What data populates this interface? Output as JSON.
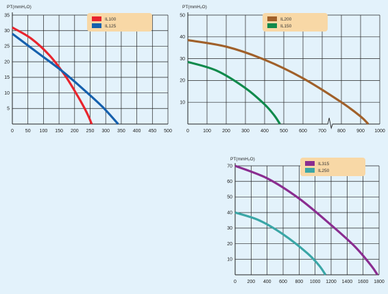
{
  "colors": {
    "background": "#e3f2fb",
    "legend_bg": "#f8d8a6",
    "grid": "#222222"
  },
  "chart_data": [
    {
      "type": "line",
      "ylabel": "PT(mmH₂O)",
      "xlim": [
        0,
        500
      ],
      "ylim": [
        0,
        35
      ],
      "x_ticks": [
        0,
        50,
        100,
        150,
        200,
        250,
        300,
        350,
        400,
        450,
        500
      ],
      "y_ticks": [
        5,
        10,
        15,
        20,
        25,
        30,
        35
      ],
      "legend": "top-right",
      "grid": true,
      "series": [
        {
          "name": "IL100",
          "color": "#e8242d",
          "x": [
            0,
            60,
            120,
            170,
            210,
            240,
            255
          ],
          "y": [
            31,
            27.5,
            22,
            15.5,
            9,
            3.5,
            0
          ]
        },
        {
          "name": "IL125",
          "color": "#1560ad",
          "x": [
            0,
            80,
            160,
            230,
            290,
            340
          ],
          "y": [
            29,
            23,
            17,
            11,
            5.5,
            0
          ]
        }
      ]
    },
    {
      "type": "line",
      "ylabel": "PT(mmH₂O)",
      "xlim": [
        0,
        1000
      ],
      "ylim": [
        0,
        50
      ],
      "x_ticks": [
        0,
        100,
        200,
        300,
        400,
        500,
        600,
        700,
        800,
        900,
        1000
      ],
      "y_ticks": [
        10,
        20,
        30,
        40,
        50
      ],
      "legend": "top-right",
      "grid": true,
      "axis_break": 740,
      "series": [
        {
          "name": "IL200",
          "color": "#a0602a",
          "x": [
            0,
            200,
            400,
            600,
            800,
            900,
            940
          ],
          "y": [
            38.5,
            35.5,
            29.5,
            21,
            10,
            3.5,
            0
          ]
        },
        {
          "name": "IL150",
          "color": "#108a4c",
          "x": [
            0,
            150,
            300,
            400,
            450,
            480
          ],
          "y": [
            28.5,
            24.5,
            16.5,
            9,
            4,
            0
          ]
        }
      ]
    },
    {
      "type": "line",
      "ylabel": "PT(mmH₂O)",
      "xlim": [
        0,
        1800
      ],
      "ylim": [
        0,
        70
      ],
      "x_ticks": [
        0,
        200,
        400,
        600,
        800,
        1000,
        1200,
        1400,
        1600,
        1800
      ],
      "y_ticks": [
        10,
        20,
        30,
        40,
        50,
        60,
        70
      ],
      "legend": "top-right",
      "grid": true,
      "series": [
        {
          "name": "IL315",
          "color": "#8a2d90",
          "x": [
            0,
            400,
            800,
            1200,
            1500,
            1700,
            1780
          ],
          "y": [
            70,
            62,
            49,
            32,
            18,
            6,
            0
          ]
        },
        {
          "name": "IL250",
          "color": "#3aa6a6",
          "x": [
            0,
            300,
            600,
            900,
            1050,
            1130
          ],
          "y": [
            40,
            35,
            26,
            14,
            6,
            0
          ]
        }
      ]
    }
  ]
}
